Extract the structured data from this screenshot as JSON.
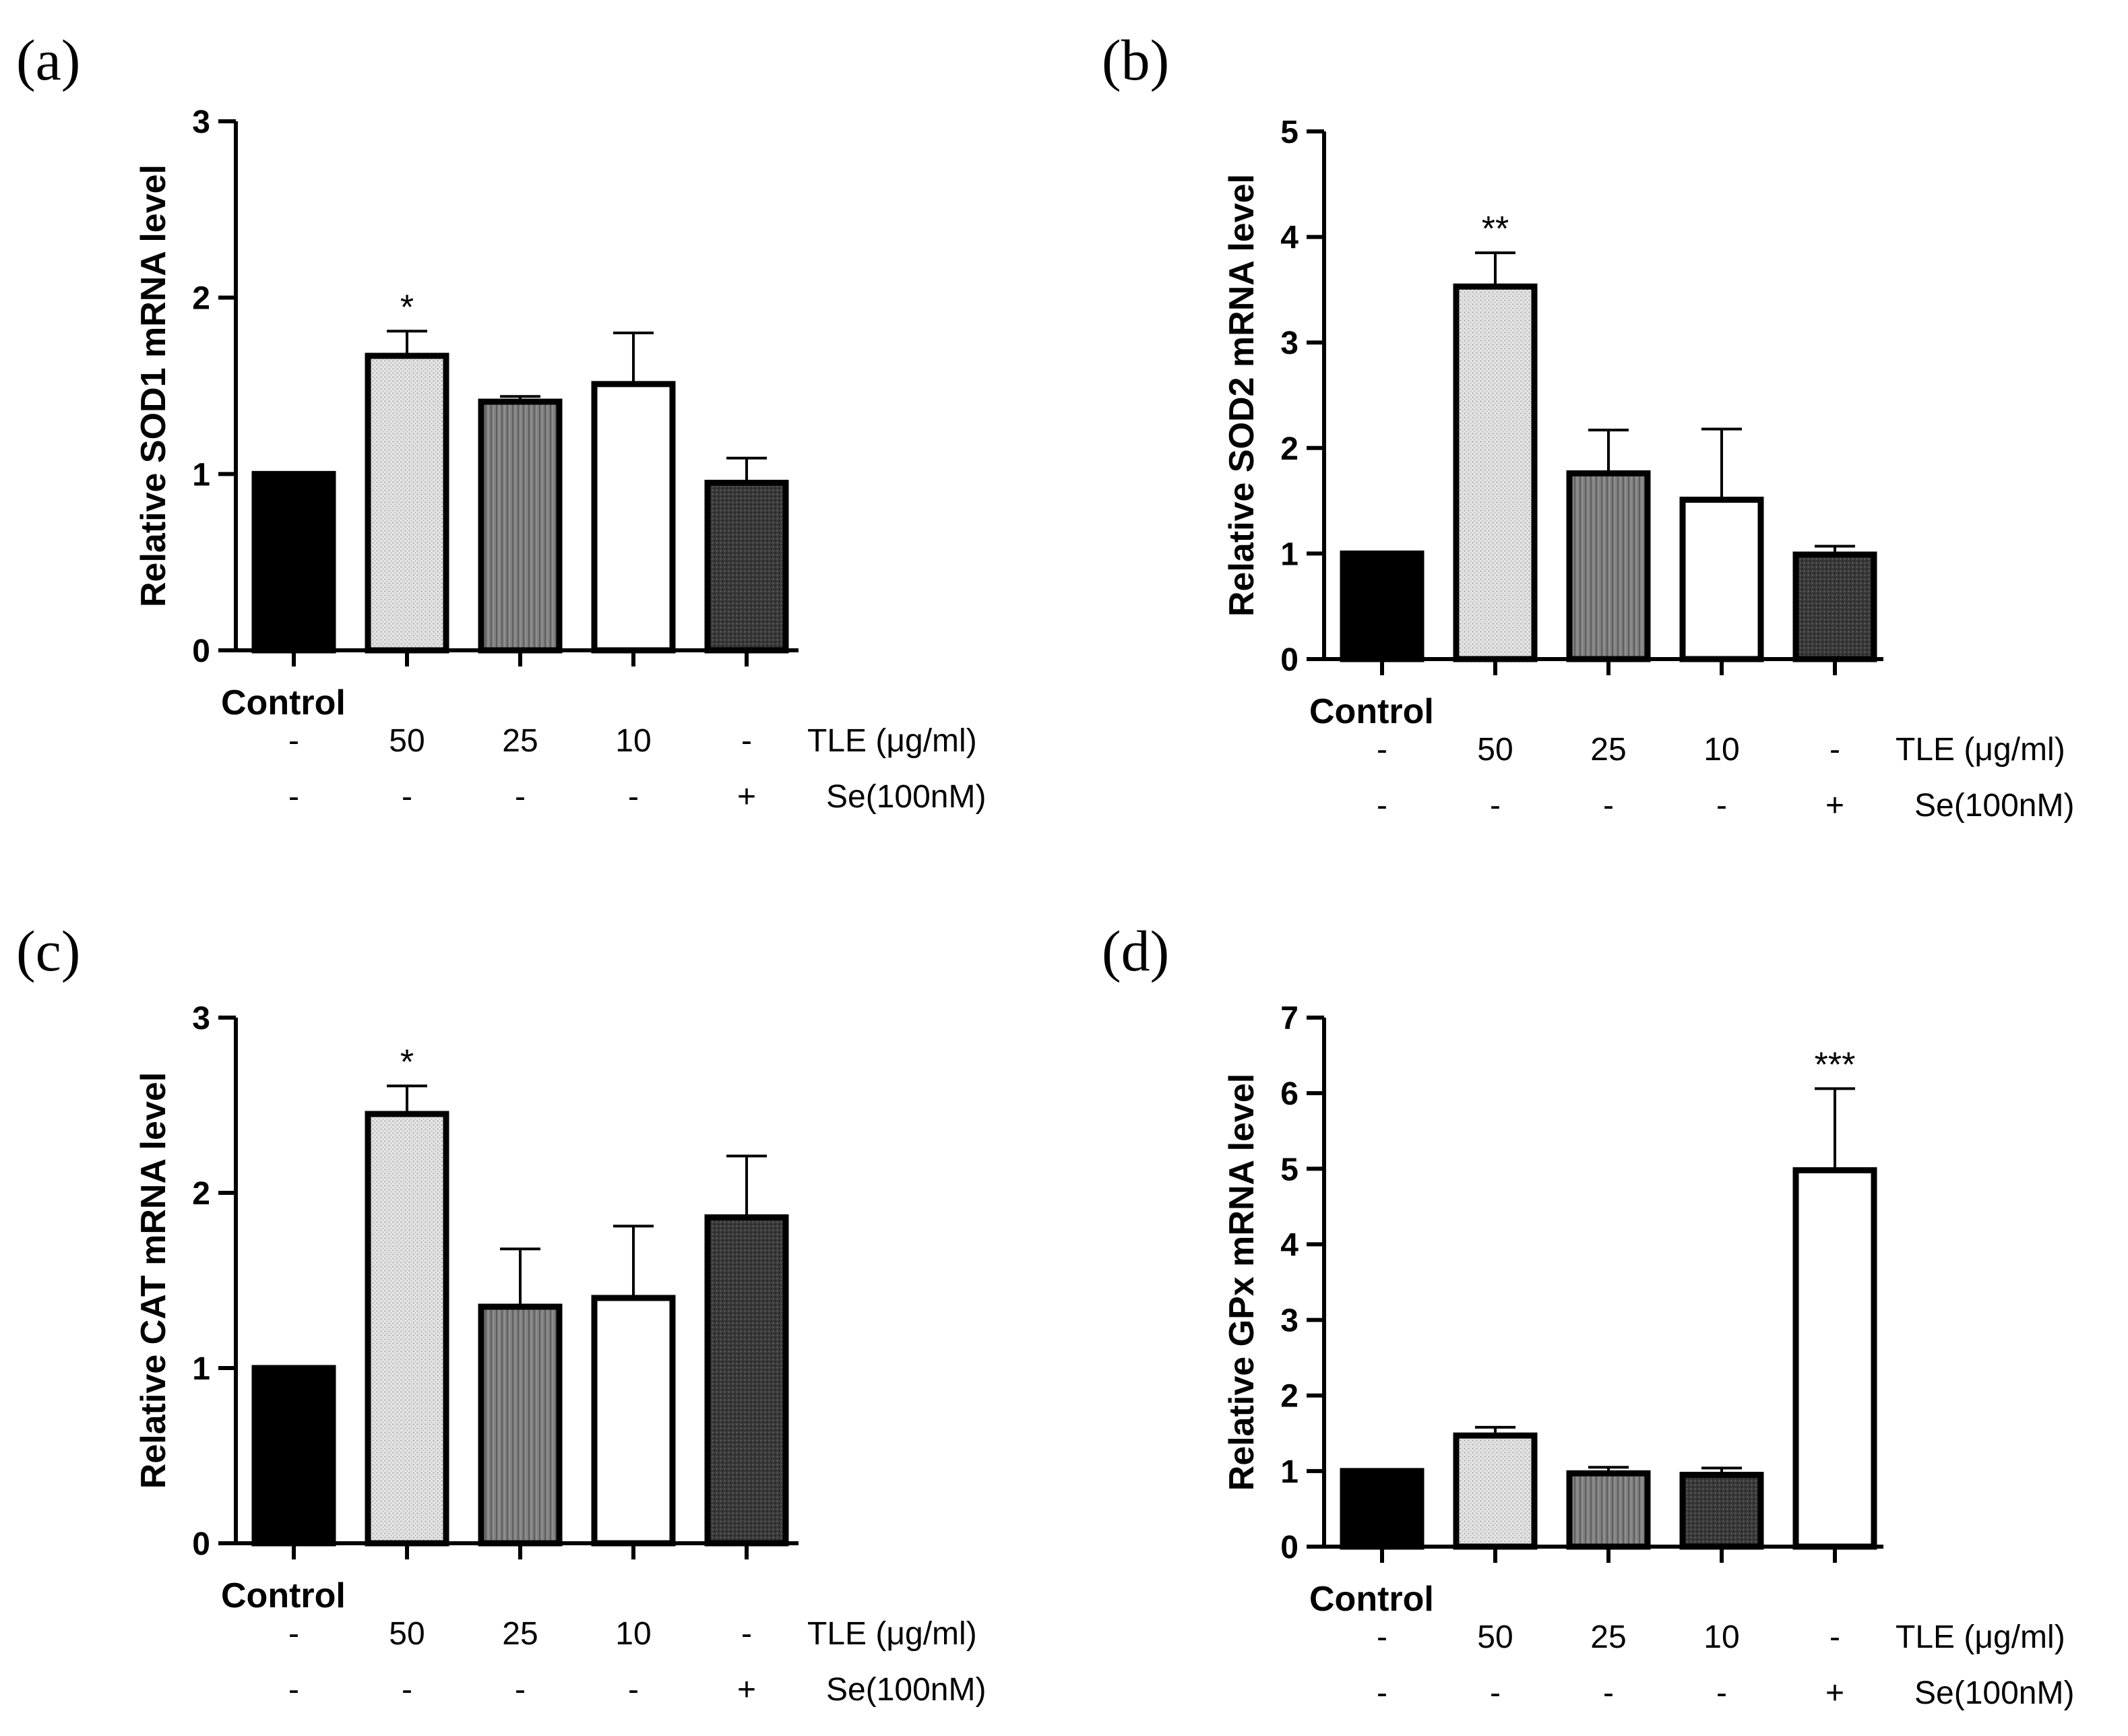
{
  "chart_data": [
    {
      "type": "bar",
      "panel_label": "(a)",
      "ylabel": "Relative SOD1 mRNA level",
      "ylim": [
        0,
        3
      ],
      "yticks": [
        "0",
        "1",
        "2",
        "3"
      ],
      "control_label": "Control",
      "categories": [
        "Control",
        "TLE 50",
        "TLE 25",
        "TLE 10",
        "Se"
      ],
      "values": [
        1.0,
        1.67,
        1.41,
        1.51,
        0.95
      ],
      "errors": [
        0,
        0.14,
        0.03,
        0.29,
        0.14
      ],
      "significance": [
        "",
        "*",
        "",
        "",
        ""
      ],
      "fills": [
        "black",
        "light-dotted",
        "gray-striped",
        "white",
        "dark-dotted"
      ],
      "tle_row": [
        "-",
        "50",
        "25",
        "10",
        "-"
      ],
      "tle_label": "TLE (μg/ml)",
      "se_row": [
        "-",
        "-",
        "-",
        "-",
        "+"
      ],
      "se_label": "Se(100nM)"
    },
    {
      "type": "bar",
      "panel_label": "(b)",
      "ylabel": "Relative SOD2 mRNA level",
      "ylim": [
        0,
        5
      ],
      "yticks": [
        "0",
        "1",
        "2",
        "3",
        "4",
        "5"
      ],
      "control_label": "Control",
      "categories": [
        "Control",
        "TLE 50",
        "TLE 25",
        "TLE 10",
        "Se"
      ],
      "values": [
        1.0,
        3.53,
        1.76,
        1.51,
        0.99
      ],
      "errors": [
        0,
        0.32,
        0.41,
        0.67,
        0.08
      ],
      "significance": [
        "",
        "**",
        "",
        "",
        ""
      ],
      "fills": [
        "black",
        "light-dotted",
        "gray-striped",
        "white",
        "dark-dotted"
      ],
      "tle_row": [
        "-",
        "50",
        "25",
        "10",
        "-"
      ],
      "tle_label": "TLE (μg/ml)",
      "se_row": [
        "-",
        "-",
        "-",
        "-",
        "+"
      ],
      "se_label": "Se(100nM)"
    },
    {
      "type": "bar",
      "panel_label": "(c)",
      "ylabel": "Relative CAT mRNA level",
      "ylim": [
        0,
        3
      ],
      "yticks": [
        "0",
        "1",
        "2",
        "3"
      ],
      "control_label": "Control",
      "categories": [
        "Control",
        "TLE 50",
        "TLE 25",
        "TLE 10",
        "Se"
      ],
      "values": [
        1.0,
        2.45,
        1.35,
        1.4,
        1.86
      ],
      "errors": [
        0,
        0.16,
        0.33,
        0.41,
        0.35
      ],
      "significance": [
        "",
        "*",
        "",
        "",
        ""
      ],
      "fills": [
        "black",
        "light-dotted",
        "gray-striped",
        "white",
        "dark-dotted"
      ],
      "tle_row": [
        "-",
        "50",
        "25",
        "10",
        "-"
      ],
      "tle_label": "TLE (μg/ml)",
      "se_row": [
        "-",
        "-",
        "-",
        "-",
        "+"
      ],
      "se_label": "Se(100nM)"
    },
    {
      "type": "bar",
      "panel_label": "(d)",
      "ylabel": "Relative GPx mRNA level",
      "ylim": [
        0,
        7
      ],
      "yticks": [
        "0",
        "1",
        "2",
        "3",
        "4",
        "5",
        "6",
        "7"
      ],
      "control_label": "Control",
      "categories": [
        "Control",
        "TLE 50",
        "TLE 25",
        "TLE 10",
        "Se"
      ],
      "values": [
        1.0,
        1.47,
        0.97,
        0.95,
        4.98
      ],
      "errors": [
        0,
        0.11,
        0.08,
        0.09,
        1.08
      ],
      "significance": [
        "",
        "",
        "",
        "",
        "***"
      ],
      "fills": [
        "black",
        "light-dotted",
        "gray-striped",
        "dark-dotted",
        "white"
      ],
      "tle_row": [
        "-",
        "50",
        "25",
        "10",
        "-"
      ],
      "tle_label": "TLE (μg/ml)",
      "se_row": [
        "-",
        "-",
        "-",
        "-",
        "+"
      ],
      "se_label": "Se(100nM)"
    }
  ]
}
